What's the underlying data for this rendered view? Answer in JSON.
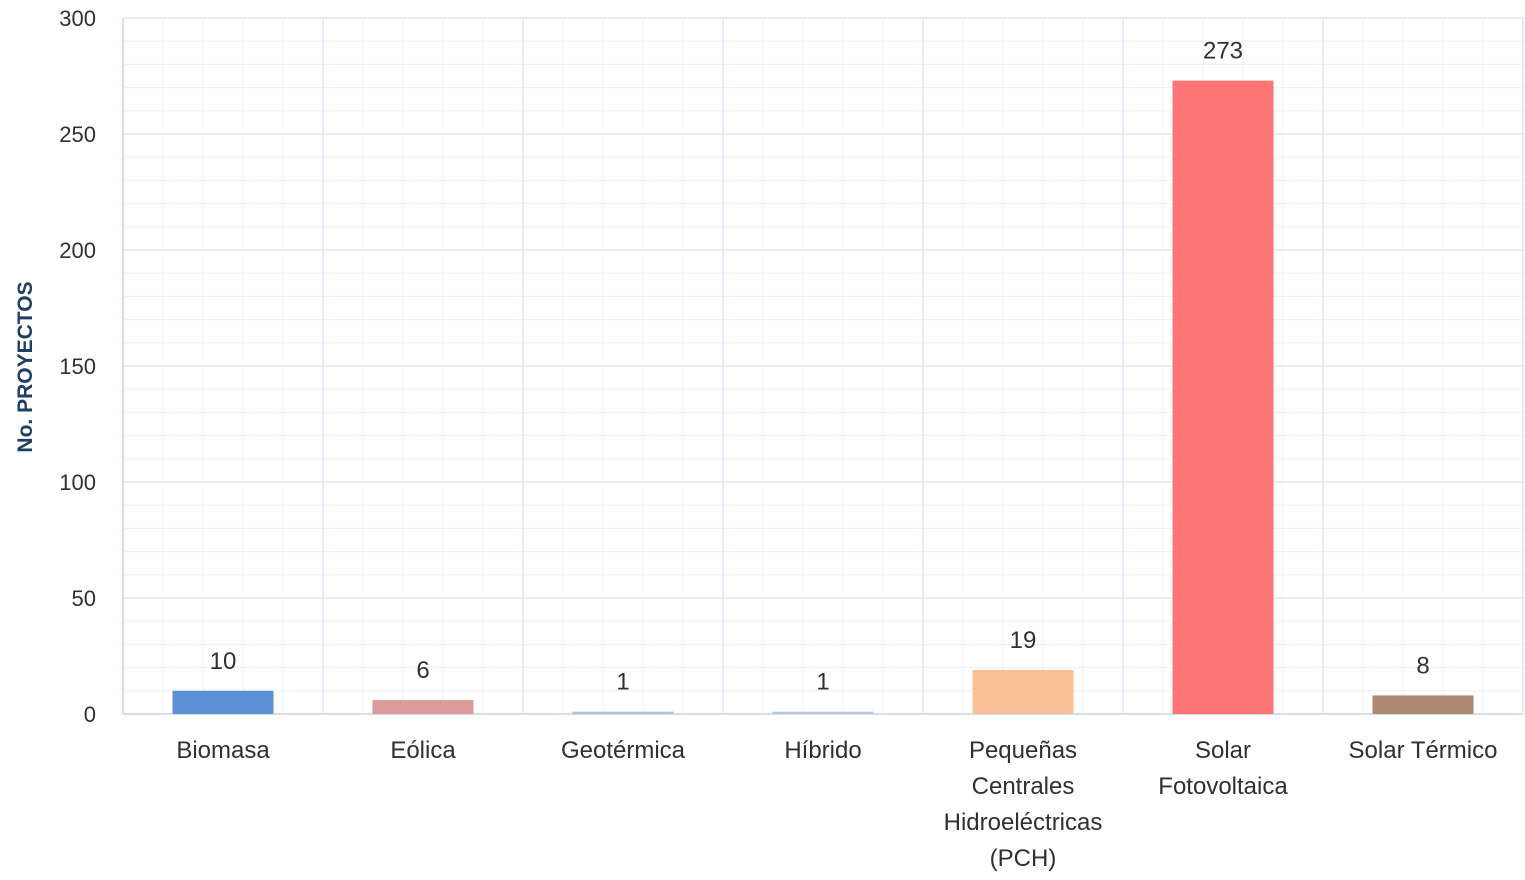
{
  "chart_data": {
    "type": "bar",
    "title": "",
    "xlabel": "",
    "ylabel": "No. PROYECTOS",
    "ylim": [
      0,
      300
    ],
    "yticks": [
      0,
      50,
      100,
      150,
      200,
      250,
      300
    ],
    "grid": true,
    "legend": "none",
    "categories": [
      [
        "Biomasa"
      ],
      [
        "Eólica"
      ],
      [
        "Geotérmica"
      ],
      [
        "Híbrido"
      ],
      [
        "Pequeñas",
        "Centrales",
        "Hidroeléctricas",
        "(PCH)"
      ],
      [
        "Solar",
        "Fotovoltaica"
      ],
      [
        "Solar Térmico"
      ]
    ],
    "values": [
      10,
      6,
      1,
      1,
      19,
      273,
      8
    ],
    "colors": [
      "#5b8fd6",
      "#de9a98",
      "#a9c1e3",
      "#b7c8dd",
      "#f8c195",
      "#ff7575",
      "#ad8872"
    ]
  }
}
